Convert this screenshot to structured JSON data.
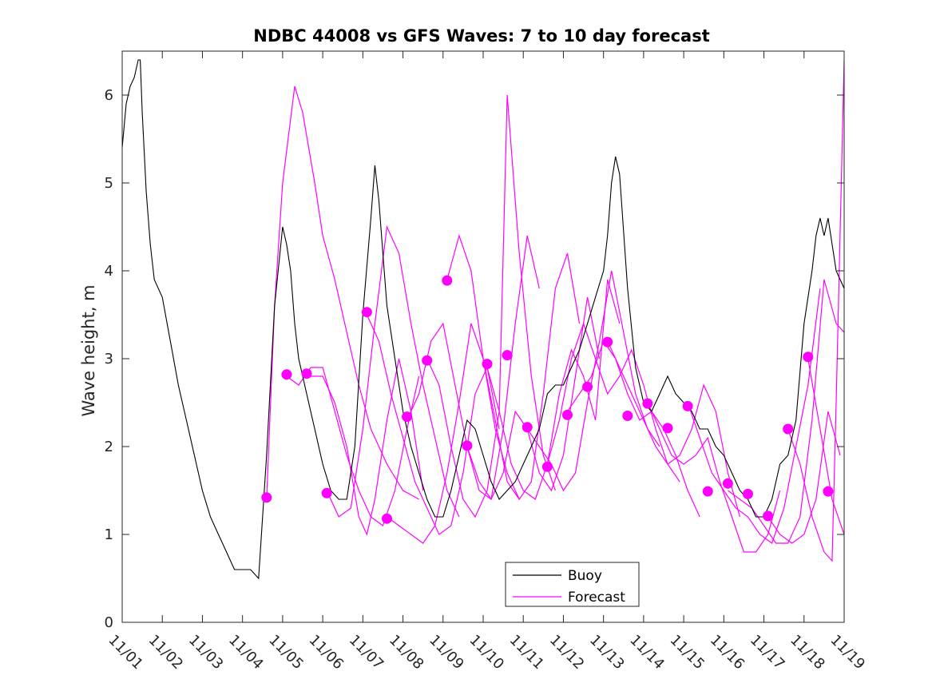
{
  "chart_data": {
    "type": "line",
    "title": "NDBC 44008 vs GFS Waves: 7 to 10 day forecast",
    "xlabel": "",
    "ylabel": "Wave height, m",
    "xlim": [
      0,
      18
    ],
    "ylim": [
      0,
      6.5
    ],
    "y_ticks": [
      0,
      1,
      2,
      3,
      4,
      5,
      6
    ],
    "x_tick_labels": [
      "11/01",
      "11/02",
      "11/03",
      "11/04",
      "11/05",
      "11/06",
      "11/07",
      "11/08",
      "11/09",
      "11/10",
      "11/11",
      "11/12",
      "11/13",
      "11/14",
      "11/15",
      "11/16",
      "11/17",
      "11/18",
      "11/19"
    ],
    "colors": {
      "buoy": "#000000",
      "forecast": "#ff00ff"
    },
    "legend": [
      {
        "label": "Buoy",
        "color": "#000000"
      },
      {
        "label": "Forecast",
        "color": "#ff00ff"
      }
    ],
    "legend_position": "bottom-center",
    "series": [
      {
        "name": "Buoy",
        "color": "#000000",
        "x": [
          0,
          0.1,
          0.2,
          0.3,
          0.4,
          0.45,
          0.5,
          0.6,
          0.7,
          0.8,
          1.0,
          1.2,
          1.4,
          1.6,
          1.8,
          2.0,
          2.2,
          2.4,
          2.6,
          2.8,
          3.0,
          3.2,
          3.4,
          3.6,
          3.8,
          4.0,
          4.1,
          4.2,
          4.3,
          4.4,
          4.5,
          4.6,
          4.7,
          4.8,
          4.9,
          5.0,
          5.2,
          5.4,
          5.6,
          5.8,
          6.0,
          6.2,
          6.3,
          6.4,
          6.5,
          6.6,
          6.8,
          7.0,
          7.2,
          7.4,
          7.6,
          7.8,
          8.0,
          8.2,
          8.4,
          8.6,
          8.8,
          9.0,
          9.2,
          9.4,
          9.6,
          9.8,
          10.0,
          10.2,
          10.4,
          10.6,
          10.8,
          11.0,
          11.2,
          11.4,
          11.6,
          11.8,
          12.0,
          12.1,
          12.2,
          12.3,
          12.4,
          12.6,
          12.8,
          13.0,
          13.2,
          13.4,
          13.6,
          13.8,
          14.0,
          14.2,
          14.4,
          14.6,
          14.8,
          15.0,
          15.2,
          15.4,
          15.6,
          15.8,
          16.0,
          16.2,
          16.4,
          16.6,
          16.8,
          17.0,
          17.2,
          17.3,
          17.4,
          17.5,
          17.6,
          17.8,
          18.0
        ],
        "values": [
          5.4,
          5.9,
          6.1,
          6.2,
          6.4,
          6.4,
          5.8,
          4.9,
          4.3,
          3.9,
          3.7,
          3.2,
          2.7,
          2.3,
          1.9,
          1.5,
          1.2,
          1.0,
          0.8,
          0.6,
          0.6,
          0.6,
          0.5,
          1.9,
          3.6,
          4.5,
          4.3,
          4.0,
          3.4,
          3.0,
          2.8,
          2.6,
          2.4,
          2.2,
          2.0,
          1.8,
          1.5,
          1.4,
          1.4,
          2.0,
          3.5,
          4.6,
          5.2,
          4.8,
          4.2,
          3.6,
          3.0,
          2.4,
          2.0,
          1.7,
          1.4,
          1.2,
          1.2,
          1.5,
          1.9,
          2.3,
          2.2,
          1.9,
          1.6,
          1.4,
          1.5,
          1.6,
          1.8,
          2.0,
          2.2,
          2.6,
          2.7,
          2.7,
          2.9,
          3.1,
          3.4,
          3.7,
          4.0,
          4.4,
          5.0,
          5.3,
          5.1,
          3.8,
          2.9,
          2.5,
          2.4,
          2.6,
          2.8,
          2.6,
          2.5,
          2.4,
          2.2,
          2.2,
          2.0,
          1.9,
          1.7,
          1.5,
          1.4,
          1.2,
          1.2,
          1.4,
          1.8,
          1.9,
          2.3,
          3.4,
          4.0,
          4.4,
          4.6,
          4.4,
          4.6,
          4.0,
          3.8
        ]
      },
      {
        "name": "Forecast",
        "color": "#ff00ff",
        "runs": [
          {
            "x": [
              3.6,
              3.8,
              4.0,
              4.3,
              4.5,
              4.8,
              5.0,
              5.3,
              5.6,
              5.9,
              6.2,
              6.6,
              7.0,
              7.4
            ],
            "values": [
              1.4,
              3.6,
              5.0,
              6.1,
              5.8,
              5.0,
              4.4,
              3.9,
              3.3,
              2.7,
              2.2,
              1.8,
              1.5,
              1.4
            ]
          },
          {
            "x": [
              4.1,
              4.4,
              4.7,
              5.0,
              5.3,
              5.6,
              5.9,
              6.2,
              6.5,
              6.8,
              7.1,
              7.4
            ],
            "values": [
              2.8,
              2.7,
              2.9,
              2.9,
              2.4,
              1.9,
              1.5,
              1.2,
              1.1,
              1.5,
              2.2,
              2.8
            ]
          },
          {
            "x": [
              4.6,
              5.0,
              5.3,
              5.6,
              5.9,
              6.1,
              6.3,
              6.6,
              6.9,
              7.2,
              7.5
            ],
            "values": [
              2.8,
              2.8,
              2.5,
              2.0,
              1.2,
              1.0,
              1.4,
              2.3,
              3.0,
              2.4,
              1.5
            ]
          },
          {
            "x": [
              5.1,
              5.4,
              5.7,
              6.0,
              6.3,
              6.6,
              6.9,
              7.2,
              7.5,
              7.8,
              8.1,
              8.4
            ],
            "values": [
              1.5,
              1.2,
              1.3,
              2.2,
              3.4,
              4.5,
              4.2,
              3.4,
              2.7,
              2.1,
              1.5,
              1.2
            ]
          },
          {
            "x": [
              6.1,
              6.4,
              6.7,
              7.0,
              7.3,
              7.6,
              7.9,
              8.2,
              8.5,
              8.8,
              9.1,
              9.4
            ],
            "values": [
              3.5,
              3.2,
              2.6,
              2.1,
              1.6,
              1.3,
              1.0,
              1.1,
              1.7,
              2.6,
              2.9,
              2.2
            ]
          },
          {
            "x": [
              6.6,
              6.9,
              7.2,
              7.5,
              7.8,
              8.1,
              8.4,
              8.7,
              9.0,
              9.3,
              9.6,
              9.9
            ],
            "values": [
              1.2,
              1.1,
              1.0,
              0.9,
              1.1,
              1.7,
              2.5,
              3.4,
              3.0,
              2.3,
              1.6,
              1.4
            ]
          },
          {
            "x": [
              7.1,
              7.4,
              7.7,
              8.0,
              8.3,
              8.6,
              8.9,
              9.2,
              9.5,
              9.8,
              10.1,
              10.4
            ],
            "values": [
              2.3,
              2.6,
              3.2,
              3.4,
              2.7,
              2.0,
              1.5,
              1.4,
              2.2,
              3.4,
              4.4,
              3.8
            ]
          },
          {
            "x": [
              7.6,
              7.9,
              8.2,
              8.5,
              8.8,
              9.1,
              9.4,
              9.6,
              9.9,
              10.2,
              10.5,
              10.8
            ],
            "values": [
              3.0,
              2.7,
              2.0,
              1.4,
              1.2,
              1.5,
              2.4,
              6.0,
              4.2,
              2.8,
              1.9,
              1.5
            ]
          },
          {
            "x": [
              8.1,
              8.4,
              8.7,
              9.0,
              9.3,
              9.6,
              9.9,
              10.2,
              10.5,
              10.8,
              11.1,
              11.4
            ],
            "values": [
              3.9,
              4.4,
              4.0,
              3.0,
              2.2,
              1.7,
              1.4,
              1.6,
              2.6,
              3.8,
              4.2,
              3.4
            ]
          },
          {
            "x": [
              8.6,
              8.9,
              9.2,
              9.5,
              9.8,
              10.1,
              10.4,
              10.7,
              11.0,
              11.3,
              11.6,
              11.9
            ],
            "values": [
              2.0,
              1.6,
              1.4,
              1.7,
              2.4,
              2.2,
              1.7,
              1.5,
              1.9,
              2.8,
              3.7,
              3.0
            ]
          },
          {
            "x": [
              9.1,
              9.4,
              9.7,
              10.0,
              10.3,
              10.6,
              10.9,
              11.2,
              11.5,
              11.8,
              12.1,
              12.4
            ],
            "values": [
              2.9,
              2.4,
              1.8,
              1.5,
              1.4,
              1.8,
              2.6,
              3.1,
              2.8,
              2.3,
              3.9,
              3.4
            ]
          },
          {
            "x": [
              10.1,
              10.4,
              10.7,
              11.0,
              11.3,
              11.6,
              11.9,
              12.2,
              12.5,
              12.8,
              13.1,
              13.4
            ],
            "values": [
              2.2,
              2.0,
              1.8,
              1.5,
              1.7,
              2.5,
              3.2,
              4.0,
              3.3,
              2.6,
              2.2,
              2.0
            ]
          },
          {
            "x": [
              10.6,
              10.9,
              11.2,
              11.5,
              11.8,
              12.1,
              12.4,
              12.7,
              13.0,
              13.3,
              13.6,
              13.9
            ],
            "values": [
              1.8,
              2.3,
              3.0,
              3.4,
              3.0,
              2.6,
              2.8,
              3.1,
              2.7,
              2.2,
              1.8,
              1.6
            ]
          },
          {
            "x": [
              11.1,
              11.4,
              11.7,
              12.0,
              12.3,
              12.6,
              12.9,
              13.2,
              13.5,
              13.8,
              14.1,
              14.4
            ],
            "values": [
              2.4,
              2.6,
              2.8,
              3.2,
              3.0,
              2.6,
              2.3,
              2.4,
              2.2,
              1.9,
              1.5,
              1.2
            ]
          },
          {
            "x": [
              12.1,
              12.4,
              12.7,
              13.0,
              13.3,
              13.6,
              13.9,
              14.2,
              14.5,
              14.8,
              15.1,
              15.4
            ],
            "values": [
              3.2,
              2.9,
              2.6,
              2.3,
              2.0,
              1.8,
              1.9,
              2.2,
              2.7,
              2.4,
              1.7,
              1.2
            ]
          },
          {
            "x": [
              13.1,
              13.4,
              13.7,
              14.0,
              14.3,
              14.6,
              14.9,
              15.2,
              15.5,
              15.8,
              16.1,
              16.4
            ],
            "values": [
              2.5,
              2.2,
              1.9,
              1.8,
              1.9,
              2.1,
              1.6,
              1.2,
              0.8,
              0.8,
              1.0,
              1.5
            ]
          },
          {
            "x": [
              14.1,
              14.4,
              14.7,
              15.0,
              15.3,
              15.6,
              15.9,
              16.2,
              16.5,
              16.8,
              17.1,
              17.4
            ],
            "values": [
              2.5,
              2.1,
              1.7,
              1.5,
              1.3,
              1.2,
              1.0,
              0.9,
              1.3,
              2.0,
              2.7,
              3.8
            ]
          },
          {
            "x": [
              15.1,
              15.4,
              15.7,
              16.0,
              16.3,
              16.6,
              16.9,
              17.2,
              17.5,
              17.8,
              18.0
            ],
            "values": [
              1.5,
              1.4,
              1.3,
              1.1,
              0.9,
              0.9,
              1.2,
              2.3,
              3.9,
              3.4,
              3.3
            ]
          },
          {
            "x": [
              16.1,
              16.4,
              16.7,
              17.0,
              17.3,
              17.6,
              17.9
            ],
            "values": [
              1.2,
              1.0,
              0.9,
              1.0,
              1.4,
              2.4,
              1.9
            ]
          },
          {
            "x": [
              16.6,
              16.9,
              17.2,
              17.5,
              17.7,
              17.8,
              18.0
            ],
            "values": [
              2.2,
              1.8,
              1.2,
              0.8,
              0.7,
              2.5,
              6.4
            ]
          },
          {
            "x": [
              17.1,
              17.4,
              17.7,
              18.0
            ],
            "values": [
              3.0,
              2.2,
              1.4,
              1.0
            ]
          }
        ]
      },
      {
        "name": "Forecast start markers",
        "color": "#ff00ff",
        "x": [
          3.6,
          4.1,
          4.6,
          5.1,
          6.1,
          6.6,
          7.1,
          7.6,
          8.1,
          8.6,
          9.1,
          9.6,
          10.1,
          10.6,
          11.1,
          11.6,
          12.1,
          12.6,
          13.1,
          13.6,
          14.1,
          14.6,
          15.1,
          15.6,
          16.1,
          16.6,
          17.1,
          17.6
        ],
        "values": [
          1.42,
          2.82,
          2.83,
          1.47,
          3.53,
          1.18,
          2.34,
          2.98,
          3.89,
          2.01,
          2.94,
          3.04,
          2.22,
          1.77,
          2.36,
          2.68,
          3.19,
          2.35,
          2.49,
          2.21,
          2.46,
          1.49,
          1.58,
          1.46,
          1.21,
          2.2,
          3.02,
          1.49
        ]
      }
    ]
  }
}
